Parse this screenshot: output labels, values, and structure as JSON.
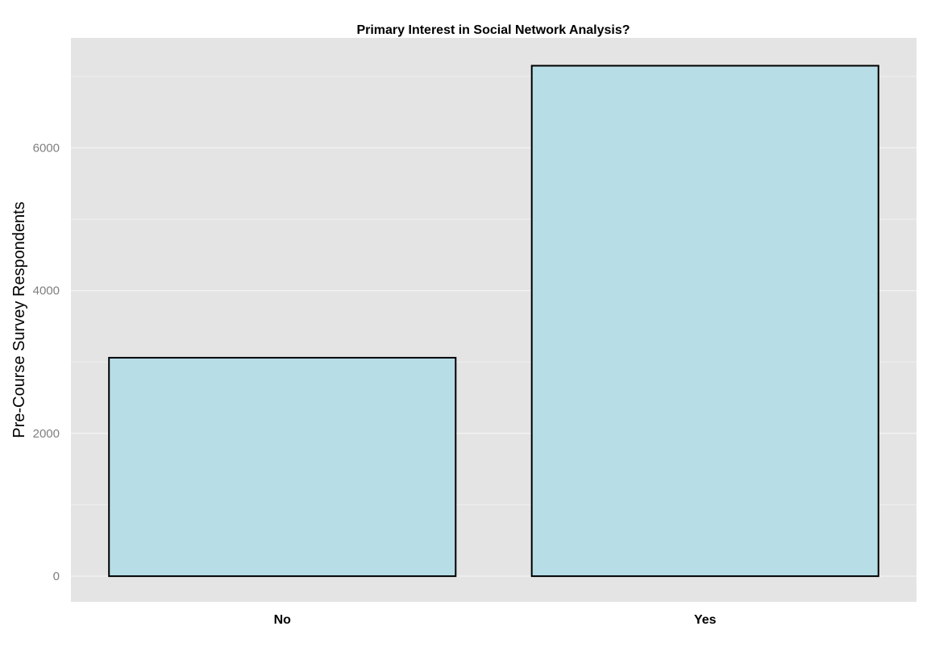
{
  "chart_data": {
    "type": "bar",
    "title": "Primary Interest in Social Network Analysis?",
    "xlabel": "",
    "ylabel": "Pre-Course Survey Respondents",
    "categories": [
      "No",
      "Yes"
    ],
    "values": [
      3060,
      7150
    ],
    "ylim": [
      -360,
      7540
    ],
    "yticks": [
      0,
      2000,
      4000,
      6000
    ],
    "ytick_labels": [
      "0",
      "2000",
      "4000",
      "6000"
    ],
    "grid": true,
    "legend": "none",
    "colors": {
      "panel": "#e4e4e4",
      "grid": "#f2f2f2",
      "bar_fill": "#b7dde7",
      "bar_stroke": "#000000",
      "tick_text": "#7f7f7f"
    }
  }
}
